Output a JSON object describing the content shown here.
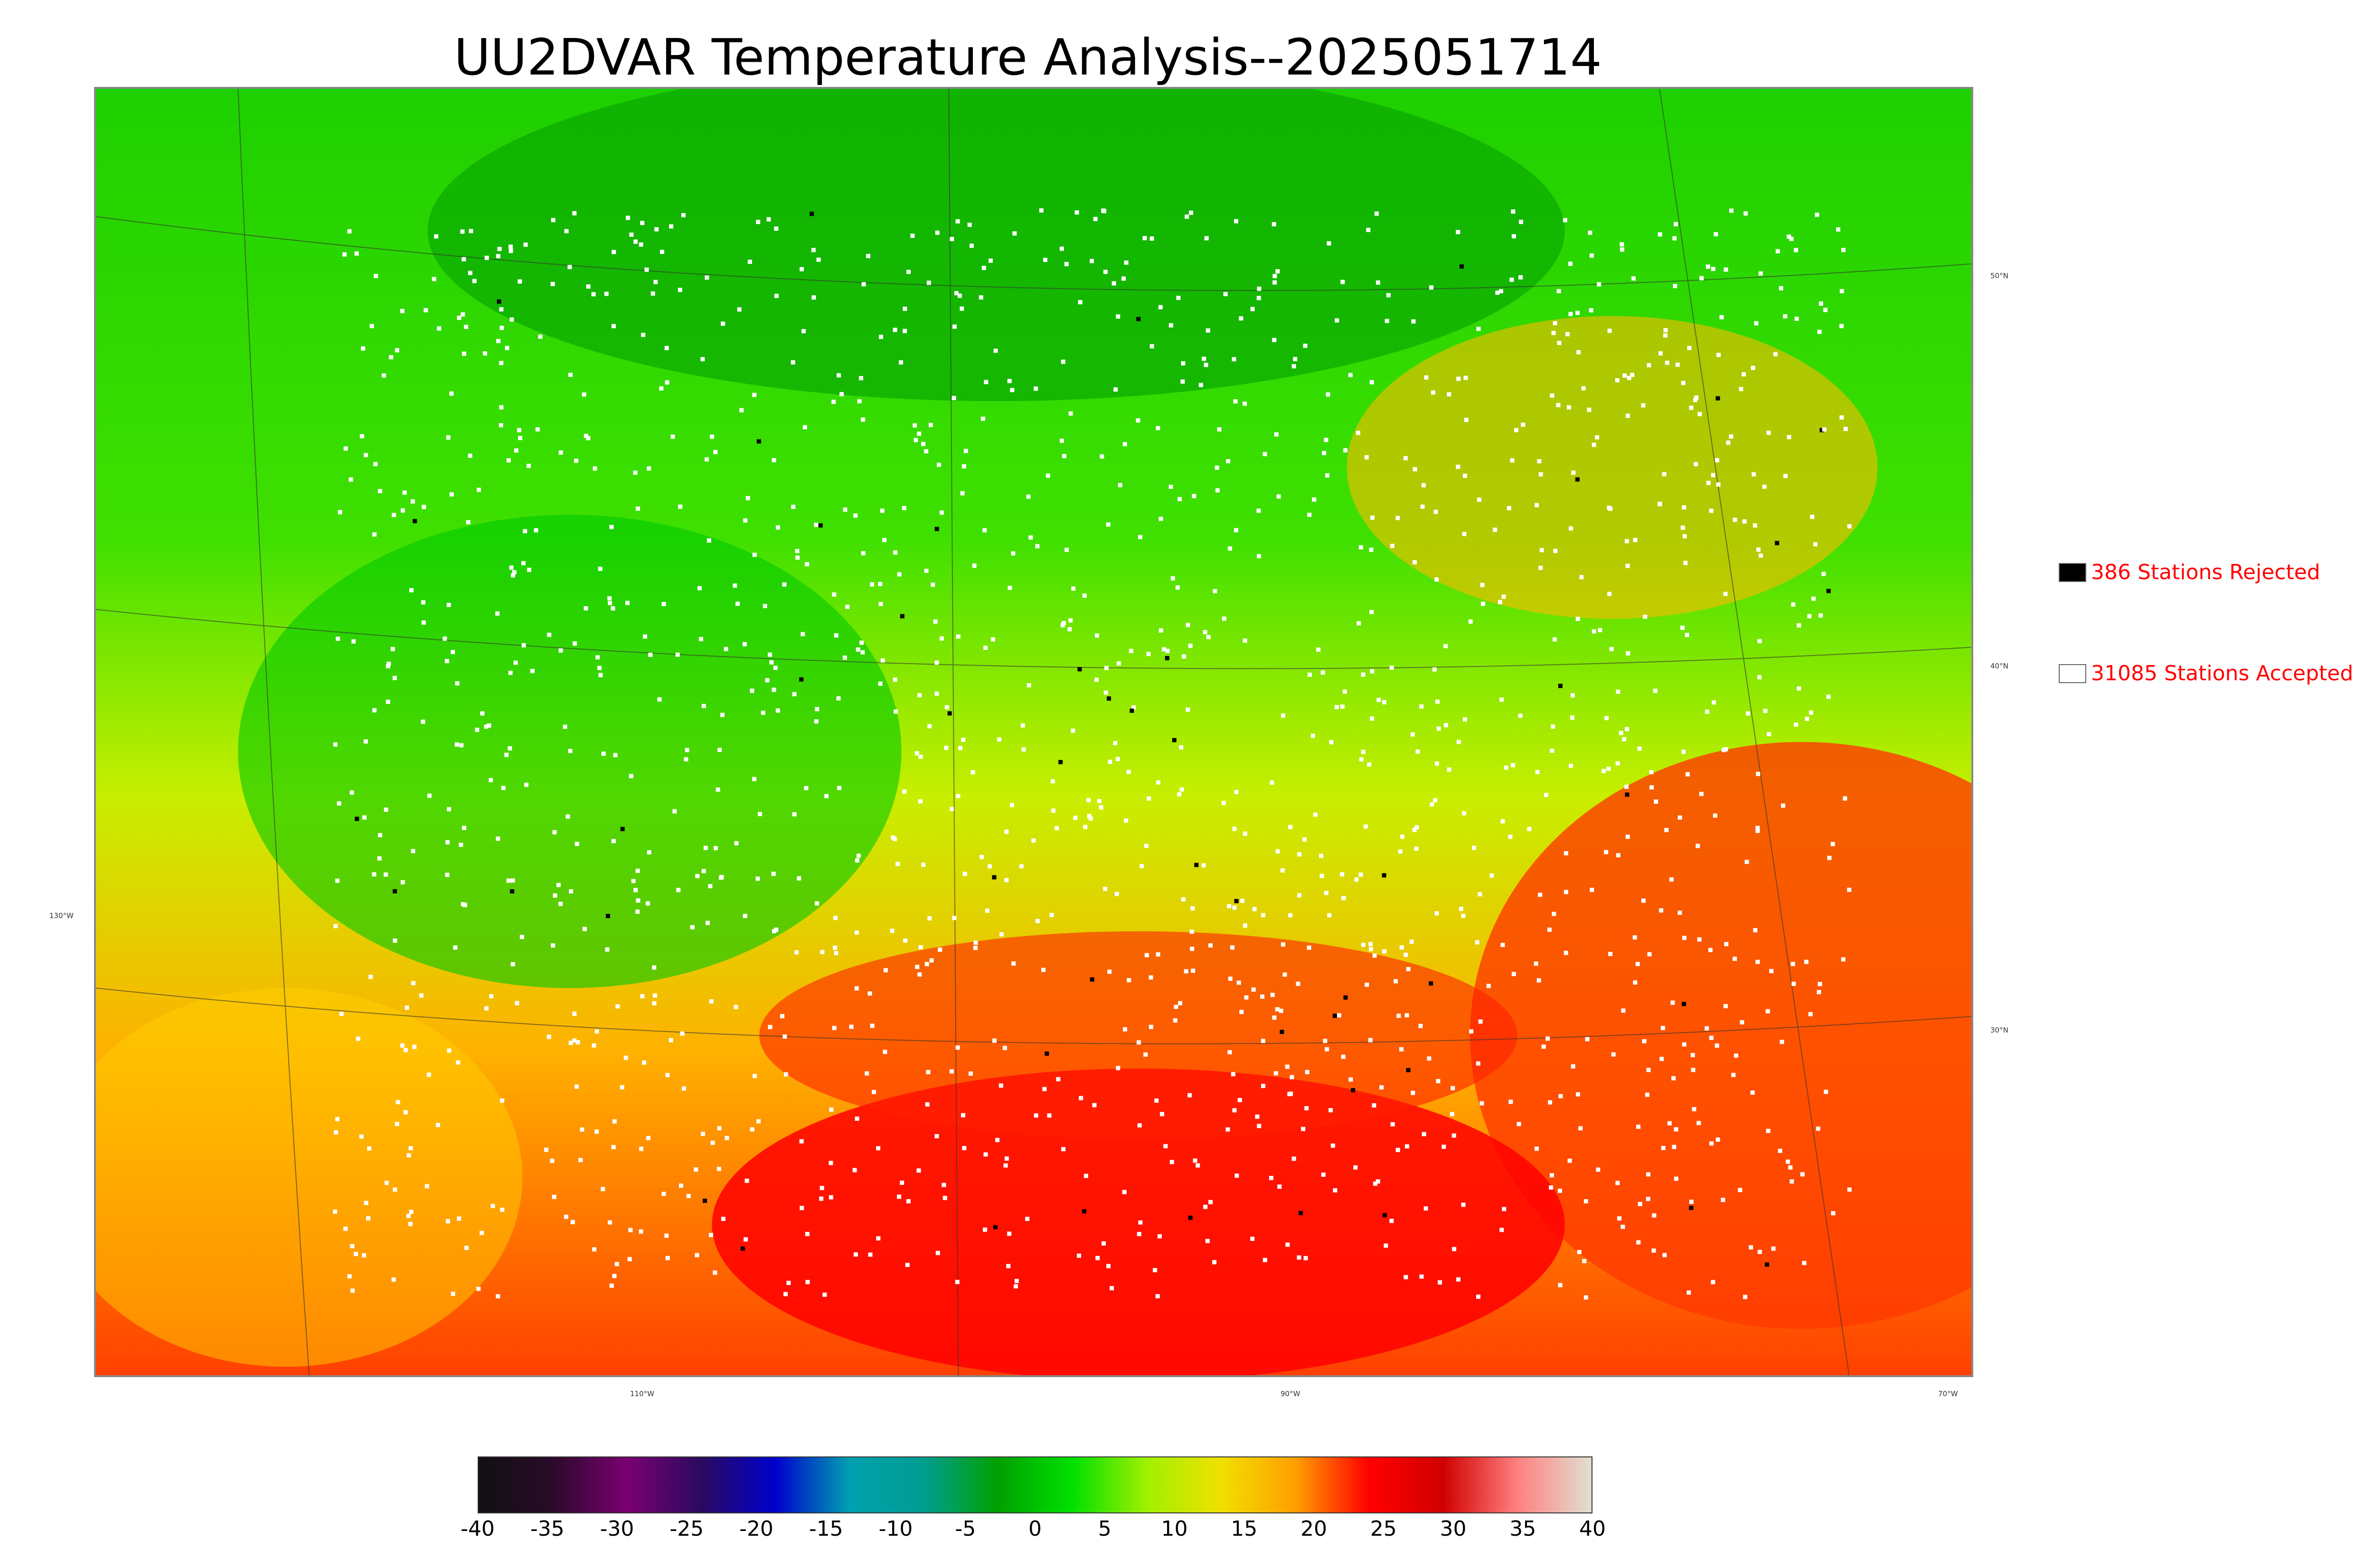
{
  "title": "UU2DVAR Temperature Analysis--2025051714",
  "legend": {
    "rejected": {
      "label": "386 Stations Rejected",
      "swatch_color": "#000000"
    },
    "accepted": {
      "label": "31085 Stations Accepted",
      "swatch_color": "#ffffff"
    }
  },
  "graticule": {
    "longitude_labels": [
      "110°W",
      "90°W",
      "70°W"
    ],
    "latitude_labels": [
      "50°N",
      "40°N",
      "30°N",
      "130°W"
    ]
  },
  "colorbar": {
    "ticks": [
      "-40",
      "-35",
      "-30",
      "-25",
      "-20",
      "-15",
      "-10",
      "-5",
      "0",
      "5",
      "10",
      "15",
      "20",
      "25",
      "30",
      "35",
      "40"
    ],
    "colors": [
      "#111111",
      "#2a0a2a",
      "#7a0070",
      "#2a0a60",
      "#0000cc",
      "#00a0b0",
      "#009e90",
      "#00a000",
      "#00e000",
      "#a0f000",
      "#f0e000",
      "#ffa000",
      "#ff0000",
      "#d00000",
      "#ff8080",
      "#e0e0d0"
    ]
  },
  "colors": {
    "cool": "#00d400",
    "mild": "#c8ee00",
    "warm": "#ffb000",
    "hot": "#ff1a00"
  }
}
